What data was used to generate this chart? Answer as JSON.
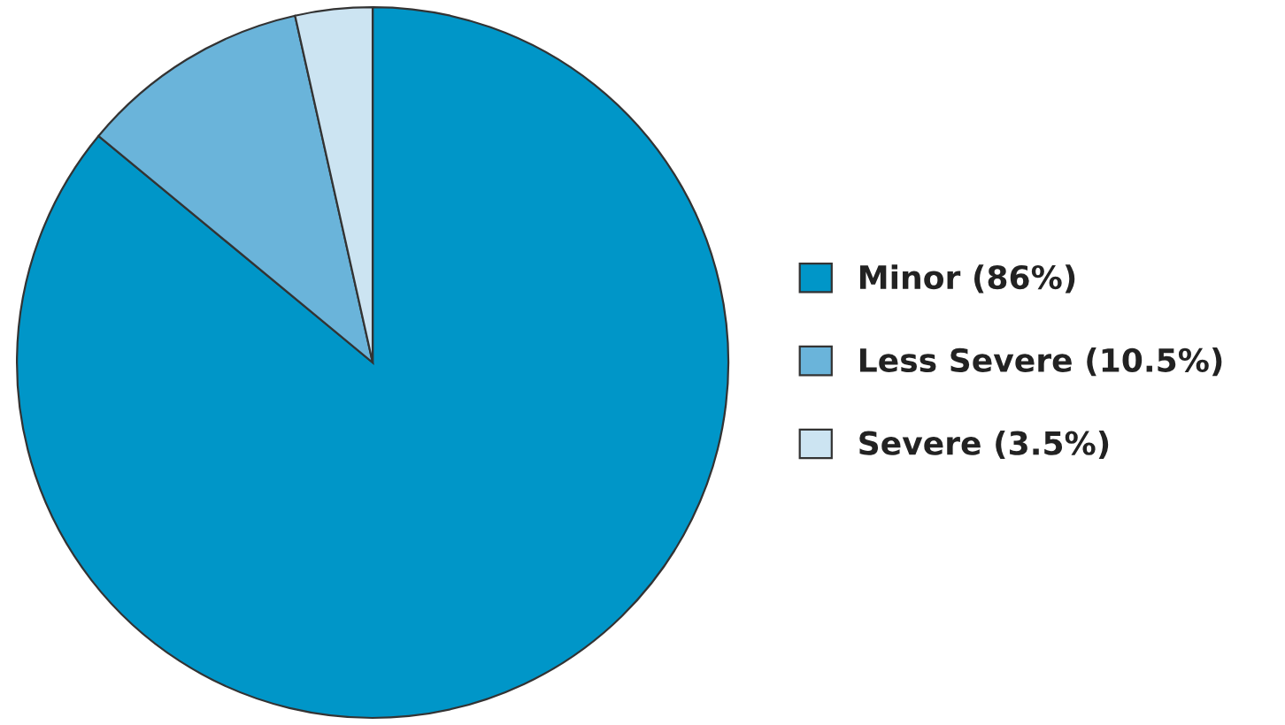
{
  "chart_data": {
    "type": "pie",
    "categories": [
      "Minor (86%)",
      "Less Severe (10.5%)",
      "Severe (3.5%)"
    ],
    "values": [
      86,
      10.5,
      3.5
    ],
    "colors": [
      "#0096c8",
      "#6ab4da",
      "#cce4f2"
    ],
    "legend": "right"
  }
}
